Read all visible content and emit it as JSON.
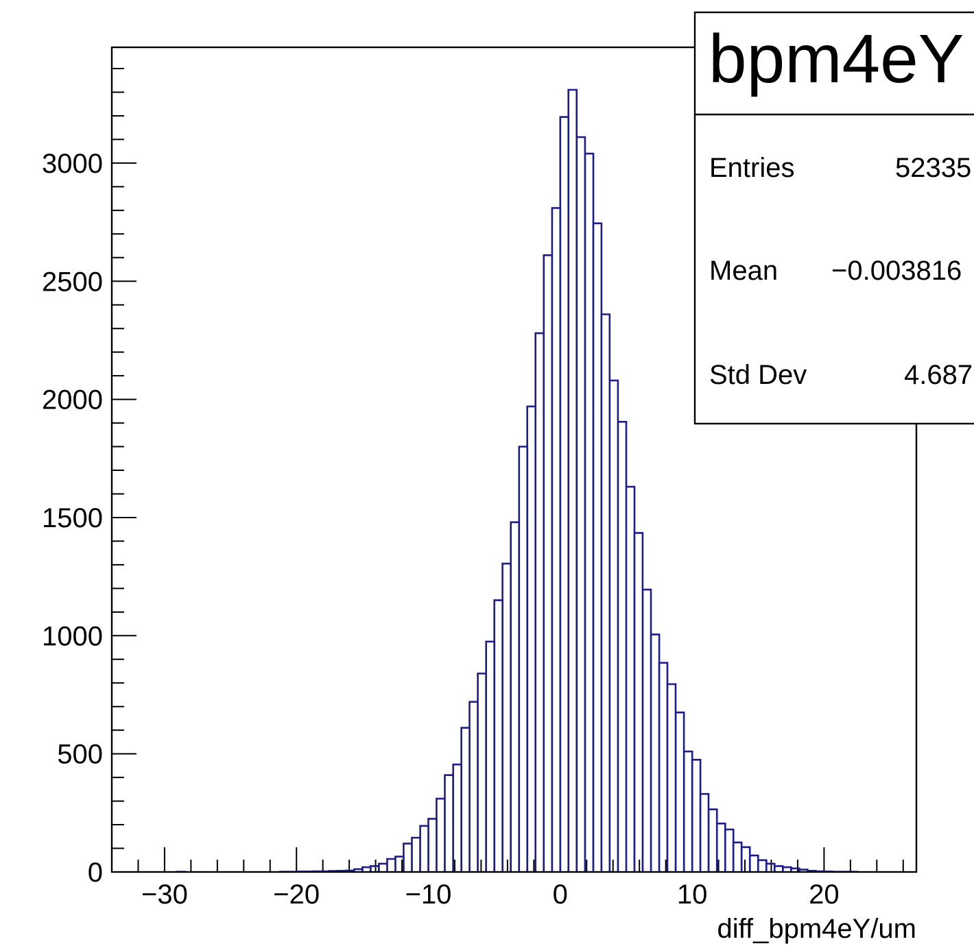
{
  "chart_data": {
    "type": "histogram",
    "title": "",
    "xlabel": "diff_bpm4eY/um",
    "ylabel": "",
    "xlim": [
      -34,
      27
    ],
    "ylim": [
      0,
      3490
    ],
    "x_ticks": [
      -30,
      -20,
      -10,
      0,
      10,
      20
    ],
    "x_tick_labels": [
      "−30",
      "−20",
      "−10",
      "0",
      "10",
      "20"
    ],
    "y_ticks": [
      0,
      500,
      1000,
      1500,
      2000,
      2500,
      3000
    ],
    "y_tick_labels": [
      "0",
      "500",
      "1000",
      "1500",
      "2000",
      "2500",
      "3000"
    ],
    "line_color": "#1c1c8c",
    "bin_width": 0.625,
    "bins": [
      {
        "x": -29.06,
        "y": 1
      },
      {
        "x": -21.25,
        "y": 1
      },
      {
        "x": -20.62,
        "y": 1
      },
      {
        "x": -20.0,
        "y": 2
      },
      {
        "x": -19.38,
        "y": 2
      },
      {
        "x": -18.75,
        "y": 3
      },
      {
        "x": -18.12,
        "y": 3
      },
      {
        "x": -17.5,
        "y": 4
      },
      {
        "x": -16.88,
        "y": 5
      },
      {
        "x": -16.25,
        "y": 6
      },
      {
        "x": -15.62,
        "y": 12
      },
      {
        "x": -15.0,
        "y": 20
      },
      {
        "x": -14.38,
        "y": 25
      },
      {
        "x": -13.75,
        "y": 35
      },
      {
        "x": -13.12,
        "y": 55
      },
      {
        "x": -12.5,
        "y": 65
      },
      {
        "x": -11.88,
        "y": 120
      },
      {
        "x": -11.25,
        "y": 145
      },
      {
        "x": -10.62,
        "y": 195
      },
      {
        "x": -10.0,
        "y": 225
      },
      {
        "x": -9.38,
        "y": 310
      },
      {
        "x": -8.75,
        "y": 410
      },
      {
        "x": -8.12,
        "y": 455
      },
      {
        "x": -7.5,
        "y": 610
      },
      {
        "x": -6.88,
        "y": 720
      },
      {
        "x": -6.25,
        "y": 840
      },
      {
        "x": -5.62,
        "y": 975
      },
      {
        "x": -5.0,
        "y": 1150
      },
      {
        "x": -4.38,
        "y": 1305
      },
      {
        "x": -3.75,
        "y": 1480
      },
      {
        "x": -3.12,
        "y": 1800
      },
      {
        "x": -2.5,
        "y": 1970
      },
      {
        "x": -1.88,
        "y": 2280
      },
      {
        "x": -1.25,
        "y": 2610
      },
      {
        "x": -0.62,
        "y": 2810
      },
      {
        "x": 0.0,
        "y": 3195
      },
      {
        "x": 0.62,
        "y": 3310
      },
      {
        "x": 1.25,
        "y": 3110
      },
      {
        "x": 1.88,
        "y": 3040
      },
      {
        "x": 2.5,
        "y": 2745
      },
      {
        "x": 3.12,
        "y": 2360
      },
      {
        "x": 3.75,
        "y": 2080
      },
      {
        "x": 4.38,
        "y": 1905
      },
      {
        "x": 5.0,
        "y": 1630
      },
      {
        "x": 5.62,
        "y": 1435
      },
      {
        "x": 6.25,
        "y": 1195
      },
      {
        "x": 6.88,
        "y": 1005
      },
      {
        "x": 7.5,
        "y": 885
      },
      {
        "x": 8.12,
        "y": 795
      },
      {
        "x": 8.75,
        "y": 675
      },
      {
        "x": 9.38,
        "y": 510
      },
      {
        "x": 10.0,
        "y": 475
      },
      {
        "x": 10.62,
        "y": 330
      },
      {
        "x": 11.25,
        "y": 265
      },
      {
        "x": 11.88,
        "y": 205
      },
      {
        "x": 12.5,
        "y": 180
      },
      {
        "x": 13.12,
        "y": 125
      },
      {
        "x": 13.75,
        "y": 105
      },
      {
        "x": 14.38,
        "y": 70
      },
      {
        "x": 15.0,
        "y": 50
      },
      {
        "x": 15.62,
        "y": 35
      },
      {
        "x": 16.25,
        "y": 25
      },
      {
        "x": 16.88,
        "y": 20
      },
      {
        "x": 17.5,
        "y": 15
      },
      {
        "x": 18.12,
        "y": 10
      },
      {
        "x": 18.75,
        "y": 5
      },
      {
        "x": 19.38,
        "y": 3
      },
      {
        "x": 20.0,
        "y": 2
      },
      {
        "x": 20.62,
        "y": 1
      },
      {
        "x": 21.25,
        "y": 1
      },
      {
        "x": 21.88,
        "y": 1
      }
    ]
  },
  "stats_box": {
    "title": "bpm4eY",
    "rows": [
      {
        "label": "Entries",
        "value": "52335"
      },
      {
        "label": "Mean",
        "value": "−0.003816"
      },
      {
        "label": "Std Dev",
        "value": "4.687"
      }
    ]
  }
}
